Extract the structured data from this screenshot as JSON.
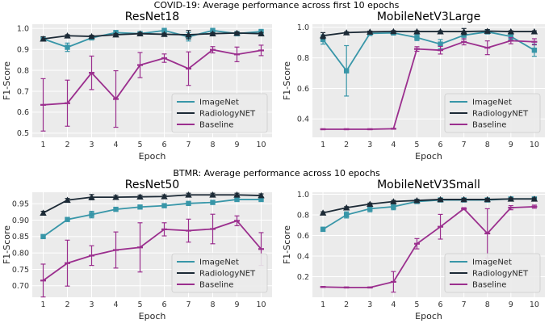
{
  "colors": {
    "imagenet": "#3896a8",
    "radiologynet": "#1c2a36",
    "baseline": "#9b2f8e",
    "panel_bg": "#ebebeb",
    "grid": "#ffffff"
  },
  "figure": {
    "suptitles": [
      "COVID-19: Average performance across first 10 epochs",
      "BTMR: Average performance across 10 epochs"
    ]
  },
  "chart_data": [
    {
      "type": "line",
      "title": "ResNet18",
      "xlabel": "Epoch",
      "ylabel": "F1-Score",
      "x": [
        1,
        2,
        3,
        4,
        5,
        6,
        7,
        8,
        9,
        10
      ],
      "xticks": [
        "1",
        "2",
        "3",
        "4",
        "5",
        "6",
        "7",
        "8",
        "9",
        "10"
      ],
      "ylim": [
        0.48,
        1.02
      ],
      "yticks": [
        0.5,
        0.6,
        0.7,
        0.8,
        0.9,
        1.0
      ],
      "yticklabels": [
        "0.5",
        "0.6",
        "0.7",
        "0.8",
        "0.9",
        "1.0"
      ],
      "legend": "lower-right",
      "series": [
        {
          "name": "ImageNet",
          "key": "imagenet",
          "marker": "square",
          "values": [
            0.95,
            0.91,
            0.955,
            0.98,
            0.975,
            0.99,
            0.96,
            0.99,
            0.975,
            0.985
          ],
          "err": [
            0.01,
            0.02,
            0.01,
            0.01,
            0.01,
            0.01,
            0.02,
            0.01,
            0.01,
            0.01
          ]
        },
        {
          "name": "RadiologyNET",
          "key": "radiologynet",
          "marker": "triangle",
          "values": [
            0.95,
            0.965,
            0.962,
            0.97,
            0.975,
            0.972,
            0.97,
            0.975,
            0.978,
            0.975
          ],
          "err": [
            0.01,
            0.005,
            0.005,
            0.005,
            0.005,
            0.005,
            0.02,
            0.005,
            0.005,
            0.005
          ]
        },
        {
          "name": "Baseline",
          "key": "baseline",
          "marker": "line",
          "values": [
            0.635,
            0.643,
            0.788,
            0.663,
            0.825,
            0.858,
            0.808,
            0.898,
            0.876,
            0.895
          ],
          "err": [
            0.125,
            0.11,
            0.08,
            0.135,
            0.06,
            0.02,
            0.08,
            0.015,
            0.035,
            0.025
          ]
        }
      ]
    },
    {
      "type": "line",
      "title": "MobileNetV3Large",
      "xlabel": "Epoch",
      "ylabel": "F1-Score",
      "x": [
        1,
        2,
        3,
        4,
        5,
        6,
        7,
        8,
        9,
        10
      ],
      "xticks": [
        "1",
        "2",
        "3",
        "4",
        "5",
        "6",
        "7",
        "8",
        "9",
        "10"
      ],
      "ylim": [
        0.28,
        1.02
      ],
      "yticks": [
        0.4,
        0.6,
        0.8,
        1.0
      ],
      "yticklabels": [
        "0.4",
        "0.6",
        "0.8",
        "1.0"
      ],
      "legend": "lower-right",
      "series": [
        {
          "name": "ImageNet",
          "key": "imagenet",
          "marker": "square",
          "values": [
            0.92,
            0.715,
            0.96,
            0.963,
            0.933,
            0.89,
            0.948,
            0.97,
            0.94,
            0.85
          ],
          "err": [
            0.03,
            0.165,
            0.01,
            0.01,
            0.02,
            0.03,
            0.025,
            0.01,
            0.02,
            0.04
          ]
        },
        {
          "name": "RadiologyNET",
          "key": "radiologynet",
          "marker": "triangle",
          "values": [
            0.945,
            0.965,
            0.97,
            0.973,
            0.972,
            0.972,
            0.972,
            0.975,
            0.972,
            0.972
          ],
          "err": [
            0.02,
            0.005,
            0.005,
            0.005,
            0.005,
            0.005,
            0.02,
            0.01,
            0.005,
            0.005
          ]
        },
        {
          "name": "Baseline",
          "key": "baseline",
          "marker": "line",
          "values": [
            0.333,
            0.333,
            0.333,
            0.336,
            0.858,
            0.85,
            0.905,
            0.866,
            0.912,
            0.905
          ],
          "err": [
            0.003,
            0.003,
            0.003,
            0.003,
            0.015,
            0.025,
            0.02,
            0.045,
            0.02,
            0.02
          ]
        }
      ]
    },
    {
      "type": "line",
      "title": "ResNet50",
      "xlabel": "Epoch",
      "ylabel": "F1-Score",
      "x": [
        1,
        2,
        3,
        4,
        5,
        6,
        7,
        8,
        9,
        10
      ],
      "xticks": [
        "1",
        "2",
        "3",
        "4",
        "5",
        "6",
        "7",
        "8",
        "9",
        "10"
      ],
      "ylim": [
        0.665,
        0.985
      ],
      "yticks": [
        0.7,
        0.75,
        0.8,
        0.85,
        0.9,
        0.95
      ],
      "yticklabels": [
        "0.70",
        "0.75",
        "0.80",
        "0.85",
        "0.90",
        "0.95"
      ],
      "legend": "lower-right",
      "series": [
        {
          "name": "ImageNet",
          "key": "imagenet",
          "marker": "square",
          "values": [
            0.85,
            0.902,
            0.917,
            0.933,
            0.94,
            0.944,
            0.951,
            0.954,
            0.963,
            0.963
          ],
          "err": [
            0.005,
            0.005,
            0.01,
            0.005,
            0.005,
            0.005,
            0.005,
            0.005,
            0.005,
            0.005
          ]
        },
        {
          "name": "RadiologyNET",
          "key": "radiologynet",
          "marker": "triangle",
          "values": [
            0.922,
            0.961,
            0.97,
            0.97,
            0.971,
            0.972,
            0.977,
            0.977,
            0.977,
            0.975
          ],
          "err": [
            0.005,
            0.005,
            0.008,
            0.005,
            0.005,
            0.005,
            0.005,
            0.005,
            0.005,
            0.005
          ]
        },
        {
          "name": "Baseline",
          "key": "baseline",
          "marker": "line",
          "values": [
            0.716,
            0.769,
            0.792,
            0.809,
            0.817,
            0.872,
            0.868,
            0.873,
            0.898,
            0.812
          ],
          "err": [
            0.05,
            0.07,
            0.03,
            0.055,
            0.075,
            0.02,
            0.035,
            0.045,
            0.015,
            0.05
          ]
        }
      ]
    },
    {
      "type": "line",
      "title": "MobileNetV3Small",
      "xlabel": "Epoch",
      "ylabel": "F1-Score",
      "x": [
        1,
        2,
        3,
        4,
        5,
        6,
        7,
        8,
        9,
        10
      ],
      "xticks": [
        "1",
        "2",
        "3",
        "4",
        "5",
        "6",
        "7",
        "8",
        "9",
        "10"
      ],
      "ylim": [
        0.0,
        1.02
      ],
      "yticks": [
        0.2,
        0.4,
        0.6,
        0.8,
        1.0
      ],
      "yticklabels": [
        "0.2",
        "0.4",
        "0.6",
        "0.8",
        "1.0"
      ],
      "legend": "lower-right",
      "series": [
        {
          "name": "ImageNet",
          "key": "imagenet",
          "marker": "square",
          "values": [
            0.66,
            0.8,
            0.86,
            0.88,
            0.93,
            0.945,
            0.945,
            0.945,
            0.955,
            0.955
          ],
          "err": [
            0.02,
            0.03,
            0.03,
            0.03,
            0.015,
            0.01,
            0.01,
            0.01,
            0.01,
            0.01
          ]
        },
        {
          "name": "RadiologyNET",
          "key": "radiologynet",
          "marker": "triangle",
          "values": [
            0.82,
            0.87,
            0.905,
            0.93,
            0.94,
            0.95,
            0.95,
            0.95,
            0.955,
            0.955
          ],
          "err": [
            0.01,
            0.01,
            0.01,
            0.01,
            0.01,
            0.01,
            0.01,
            0.01,
            0.01,
            0.01
          ]
        },
        {
          "name": "Baseline",
          "key": "baseline",
          "marker": "line",
          "values": [
            0.1,
            0.095,
            0.095,
            0.15,
            0.52,
            0.685,
            0.86,
            0.62,
            0.87,
            0.88
          ],
          "err": [
            0.005,
            0.005,
            0.005,
            0.1,
            0.05,
            0.12,
            0.01,
            0.24,
            0.02,
            0.015
          ]
        }
      ]
    }
  ]
}
